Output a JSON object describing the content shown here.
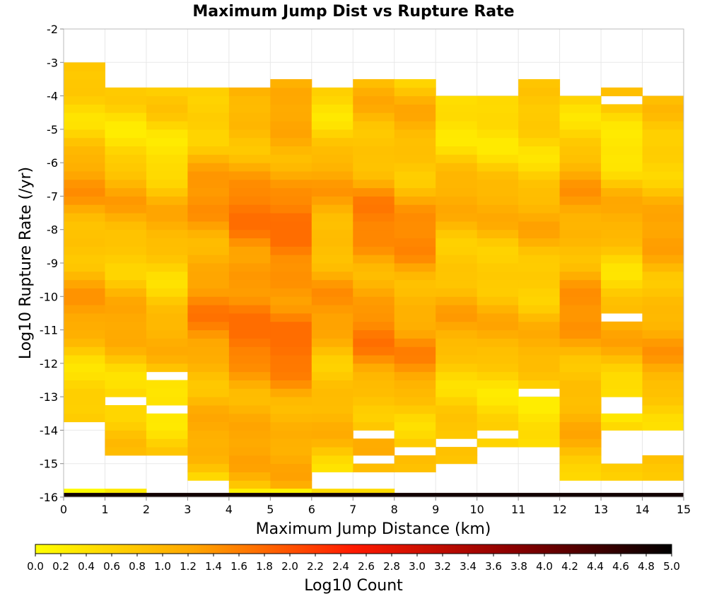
{
  "chart_data": {
    "type": "heatmap",
    "title": "Maximum Jump Dist vs Rupture Rate",
    "xlabel": "Maximum Jump Distance (km)",
    "ylabel": "Log10 Rupture Rate (/yr)",
    "xlim": [
      0,
      15
    ],
    "ylim": [
      -16,
      -2
    ],
    "x_ticks": [
      "0",
      "1",
      "2",
      "3",
      "4",
      "5",
      "6",
      "7",
      "8",
      "9",
      "10",
      "11",
      "12",
      "13",
      "14",
      "15"
    ],
    "y_ticks": [
      "-2",
      "-3",
      "-4",
      "-5",
      "-6",
      "-7",
      "-8",
      "-9",
      "-10",
      "-11",
      "-12",
      "-13",
      "-14",
      "-15",
      "-16"
    ],
    "x_bin_width": 1,
    "y_bin_width": 0.25,
    "y_bin_start": -16,
    "colorbar": {
      "label": "Log10 Count",
      "min": 0,
      "max": 5,
      "ticks": [
        "0.0",
        "0.2",
        "0.4",
        "0.6",
        "0.8",
        "1.0",
        "1.2",
        "1.4",
        "1.6",
        "1.8",
        "2.0",
        "2.2",
        "2.4",
        "2.6",
        "2.8",
        "3.0",
        "3.2",
        "3.4",
        "3.6",
        "3.8",
        "4.0",
        "4.2",
        "4.4",
        "4.6",
        "4.8",
        "5.0"
      ],
      "colors": [
        "#ffff00",
        "#ffa500",
        "#ff0000",
        "#8b0000",
        "#000000"
      ]
    },
    "columns": [
      {
        "x": 0.5,
        "top": -3.0,
        "bottom": -13.75,
        "base": 0.95,
        "amp": 0.35,
        "phase": 0.3,
        "bottom_row": 0.05,
        "gaps": []
      },
      {
        "x": 1.5,
        "top": -3.75,
        "bottom": -14.75,
        "base": 0.85,
        "amp": 0.35,
        "phase": 1.1,
        "bottom_row": 0.3,
        "gaps": [
          -13.25
        ]
      },
      {
        "x": 2.5,
        "top": -3.75,
        "bottom": -14.75,
        "base": 0.75,
        "amp": 0.35,
        "phase": 2.0,
        "bottom_row": null,
        "gaps": [
          -12.5,
          -13.5
        ]
      },
      {
        "x": 3.5,
        "top": -3.75,
        "bottom": -15.5,
        "base": 1.15,
        "amp": 0.3,
        "phase": 0.7,
        "bottom_row": null,
        "gaps": []
      },
      {
        "x": 4.5,
        "top": -3.75,
        "bottom": -15.75,
        "base": 1.35,
        "amp": 0.3,
        "phase": 1.6,
        "bottom_row": 0.2,
        "gaps": []
      },
      {
        "x": 5.5,
        "top": -3.5,
        "bottom": -15.75,
        "base": 1.4,
        "amp": 0.3,
        "phase": 2.4,
        "bottom_row": 0.15,
        "gaps": []
      },
      {
        "x": 6.5,
        "top": -3.75,
        "bottom": -15.25,
        "base": 1.0,
        "amp": 0.3,
        "phase": 0.2,
        "bottom_row": 0.5,
        "gaps": []
      },
      {
        "x": 7.5,
        "top": -3.5,
        "bottom": -15.25,
        "base": 1.2,
        "amp": 0.35,
        "phase": 1.9,
        "bottom_row": 0.5,
        "gaps": [
          -14.25,
          -15.0
        ]
      },
      {
        "x": 8.5,
        "top": -3.5,
        "bottom": -15.25,
        "base": 1.1,
        "amp": 0.35,
        "phase": 2.8,
        "bottom_row": null,
        "gaps": [
          -14.75
        ]
      },
      {
        "x": 9.5,
        "top": -4.0,
        "bottom": -15.0,
        "base": 0.85,
        "amp": 0.3,
        "phase": 0.9,
        "bottom_row": null,
        "gaps": [
          -14.5
        ]
      },
      {
        "x": 10.5,
        "top": -4.0,
        "bottom": -14.5,
        "base": 0.8,
        "amp": 0.3,
        "phase": 1.4,
        "bottom_row": null,
        "gaps": [
          -14.25
        ]
      },
      {
        "x": 11.5,
        "top": -3.5,
        "bottom": -14.5,
        "base": 0.8,
        "amp": 0.3,
        "phase": 2.2,
        "bottom_row": null,
        "gaps": [
          -13.0
        ]
      },
      {
        "x": 12.5,
        "top": -4.0,
        "bottom": -15.5,
        "base": 1.05,
        "amp": 0.3,
        "phase": 0.5,
        "bottom_row": null,
        "gaps": []
      },
      {
        "x": 13.5,
        "top": -3.75,
        "bottom": -15.5,
        "base": 0.75,
        "amp": 0.4,
        "phase": 1.7,
        "bottom_row": null,
        "gaps": [
          -4.25,
          -10.75,
          -13.25,
          -13.5,
          -14.25,
          -14.5,
          -14.75,
          -15.0
        ]
      },
      {
        "x": 14.5,
        "top": -4.0,
        "bottom": -15.5,
        "base": 0.95,
        "amp": 0.3,
        "phase": 2.6,
        "bottom_row": null,
        "gaps": [
          -14.25,
          -14.5,
          -14.75
        ]
      }
    ],
    "bottom_row_dark": {
      "y": -16.0,
      "value": 4.85,
      "from_x": 0,
      "to_x": 15
    }
  }
}
